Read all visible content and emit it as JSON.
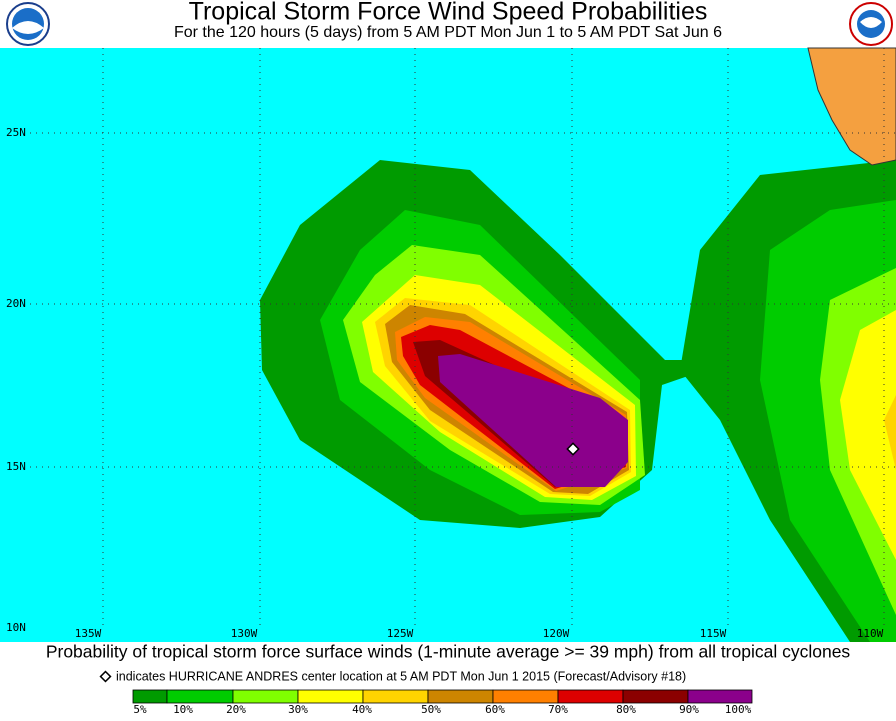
{
  "header": {
    "title": "Tropical Storm Force Wind Speed Probabilities",
    "subtitle": "For the 120 hours (5 days) from 5 AM PDT Mon Jun 1 to 5 AM PDT Sat Jun 6"
  },
  "map": {
    "latitude_labels": [
      "25N",
      "20N",
      "15N",
      "10N"
    ],
    "longitude_labels": [
      "135W",
      "130W",
      "125W",
      "120W",
      "115W",
      "110W"
    ]
  },
  "footer": {
    "description": "Probability of tropical storm force surface winds (1-minute average >= 39 mph) from all tropical cyclones",
    "note": "indicates HURRICANE ANDRES center location at 5 AM PDT Mon Jun 1 2015 (Forecast/Advisory #18)"
  },
  "legend": {
    "labels": [
      "5%",
      "10%",
      "20%",
      "30%",
      "40%",
      "50%",
      "60%",
      "70%",
      "80%",
      "90%",
      "100%"
    ]
  }
}
